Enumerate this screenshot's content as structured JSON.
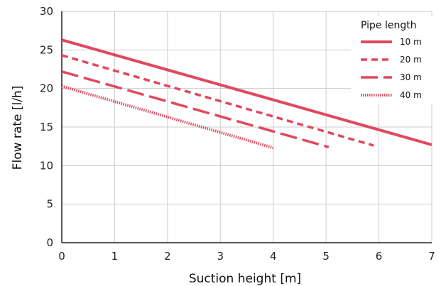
{
  "chart_data": {
    "type": "line",
    "xlabel": "Suction height [m]",
    "ylabel": "Flow rate [l/h]",
    "xlim": [
      0,
      7
    ],
    "ylim": [
      0,
      30
    ],
    "xticks": [
      "0",
      "1",
      "2",
      "3",
      "4",
      "5",
      "6",
      "7"
    ],
    "yticks": [
      "0",
      "5",
      "10",
      "15",
      "20",
      "25",
      "30"
    ],
    "grid": true,
    "legend": {
      "title": "Pipe length",
      "placement": "top-right"
    },
    "line_color": "#e0485e",
    "series": [
      {
        "name": "10 m",
        "style": "solid",
        "x": [
          0,
          7
        ],
        "y": [
          26.3,
          12.7
        ]
      },
      {
        "name": "20 m",
        "style": "dashed",
        "x": [
          0,
          5.9
        ],
        "y": [
          24.3,
          12.6
        ]
      },
      {
        "name": "30 m",
        "style": "long-dash",
        "x": [
          0,
          5.05
        ],
        "y": [
          22.2,
          12.4
        ]
      },
      {
        "name": "40 m",
        "style": "dotted",
        "x": [
          0,
          4.0
        ],
        "y": [
          20.3,
          12.3
        ]
      }
    ]
  }
}
